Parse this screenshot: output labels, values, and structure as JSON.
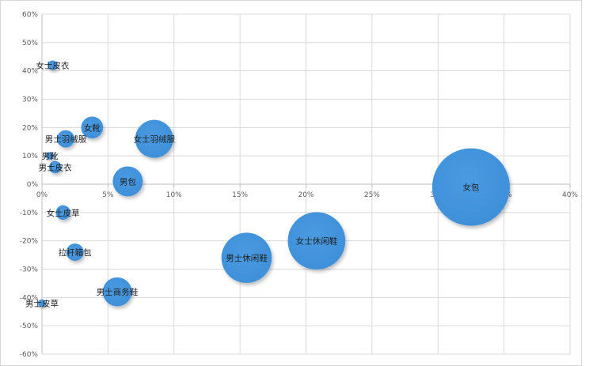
{
  "chart_data": {
    "type": "bubble",
    "x_ticks": [
      "0%",
      "5%",
      "10%",
      "15%",
      "20%",
      "25%",
      "30%",
      "35%",
      "40%"
    ],
    "y_ticks": [
      "60%",
      "50%",
      "40%",
      "30%",
      "20%",
      "10%",
      "0%",
      "-10%",
      "-20%",
      "-30%",
      "-40%",
      "-50%",
      "-60%"
    ],
    "xlim": [
      0,
      40
    ],
    "ylim": [
      -60,
      60
    ],
    "grid": true,
    "bubble_color": "#3d8fd9",
    "points": [
      {
        "label": "女士皮衣",
        "x": 0.8,
        "y": 42,
        "size": 1.5
      },
      {
        "label": "女靴",
        "x": 3.8,
        "y": 20,
        "size": 8
      },
      {
        "label": "男士羽绒服",
        "x": 1.8,
        "y": 16,
        "size": 5
      },
      {
        "label": "女士羽绒服",
        "x": 8.5,
        "y": 16,
        "size": 24
      },
      {
        "label": "男靴",
        "x": 0.6,
        "y": 10,
        "size": 1
      },
      {
        "label": "男士皮衣",
        "x": 1.0,
        "y": 6,
        "size": 2.5
      },
      {
        "label": "男包",
        "x": 6.5,
        "y": 1,
        "size": 15
      },
      {
        "label": "女包",
        "x": 32.5,
        "y": -1,
        "size": 100
      },
      {
        "label": "女士皮草",
        "x": 1.6,
        "y": -10,
        "size": 3.5
      },
      {
        "label": "女士休闲鞋",
        "x": 20.8,
        "y": -20,
        "size": 55
      },
      {
        "label": "拉杆箱包",
        "x": 2.5,
        "y": -24,
        "size": 5
      },
      {
        "label": "男士休闲鞋",
        "x": 15.5,
        "y": -26,
        "size": 42
      },
      {
        "label": "男士商务鞋",
        "x": 5.7,
        "y": -38,
        "size": 14
      },
      {
        "label": "男士皮草",
        "x": 0.0,
        "y": -42,
        "size": 1
      }
    ]
  }
}
